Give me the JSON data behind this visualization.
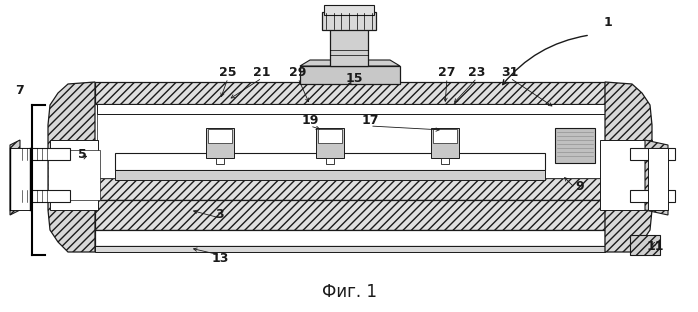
{
  "bg_color": "#ffffff",
  "line_color": "#1a1a1a",
  "caption": "Фиг. 1",
  "caption_fontsize": 12,
  "figsize": [
    6.98,
    3.12
  ],
  "dpi": 100
}
